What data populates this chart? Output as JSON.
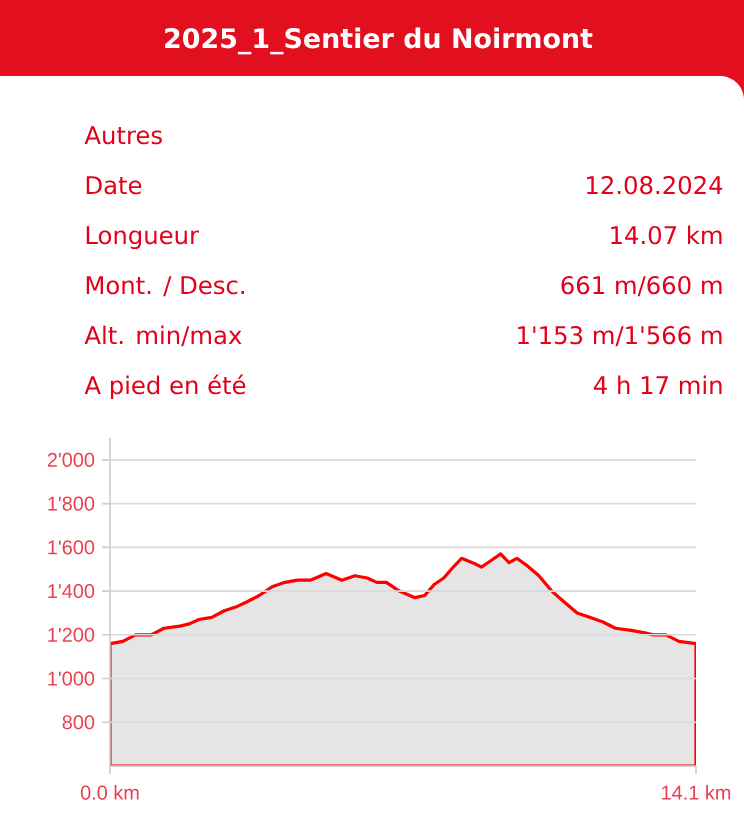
{
  "chart_data": {
    "type": "area",
    "title": "2025_1_Sentier du Noirmont",
    "annotations": [
      "Autres",
      "Date",
      "12.08.2024",
      "Longueur",
      "14.07 km",
      "Mont. / Desc.",
      "661 m/660 m",
      "Alt. min/max",
      "1'153 m/1'566 m",
      "A pied en été",
      "4 h 17 min"
    ],
    "x": [
      0,
      0.31,
      0.61,
      0.99,
      1.3,
      1.68,
      1.91,
      2.14,
      2.45,
      2.75,
      3.06,
      3.29,
      3.59,
      3.9,
      4.21,
      4.51,
      4.82,
      5.2,
      5.58,
      5.89,
      6.19,
      6.42,
      6.65,
      6.96,
      7.34,
      7.57,
      7.8,
      8.03,
      8.26,
      8.46,
      8.72,
      8.94,
      9.17,
      9.4,
      9.6,
      9.79,
      10.01,
      10.32,
      10.63,
      10.93,
      11.24,
      11.54,
      11.85,
      12.16,
      12.54,
      12.84,
      13.07,
      13.38,
      13.69,
      14.1
    ],
    "values": [
      1160,
      1170,
      1200,
      1200,
      1230,
      1240,
      1250,
      1270,
      1280,
      1310,
      1330,
      1350,
      1380,
      1420,
      1440,
      1450,
      1450,
      1480,
      1450,
      1470,
      1460,
      1440,
      1440,
      1400,
      1370,
      1380,
      1430,
      1460,
      1510,
      1550,
      1530,
      1510,
      1540,
      1570,
      1530,
      1550,
      1520,
      1470,
      1400,
      1350,
      1300,
      1280,
      1260,
      1230,
      1220,
      1210,
      1200,
      1200,
      1170,
      1160
    ],
    "color": "#ff0000",
    "xlim": [
      0,
      14.1
    ],
    "xticks": [
      {
        "value": 0,
        "label": "0.0 km"
      },
      {
        "value": 14.1,
        "label": "14.1 km"
      }
    ],
    "ylim": [
      600,
      2100
    ],
    "yticks": [
      800,
      {
        "value": 1000,
        "label": "1'000"
      },
      {
        "value": 1200,
        "label": "1'200"
      },
      {
        "value": 1400,
        "label": "1'400"
      },
      {
        "value": 1600,
        "label": "1'600"
      },
      {
        "value": 1800,
        "label": "1'800"
      },
      {
        "value": 2000,
        "label": "2'000"
      }
    ],
    "grid": "y"
  }
}
